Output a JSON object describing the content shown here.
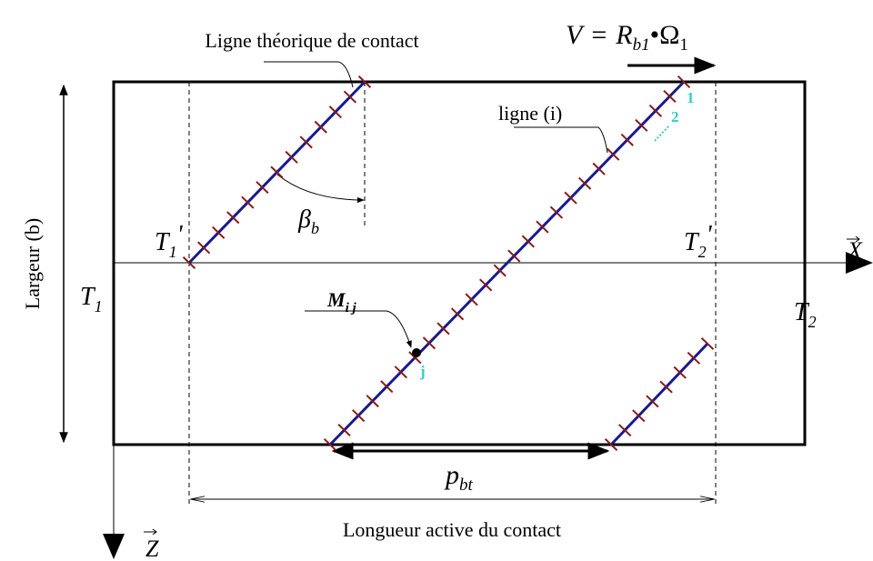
{
  "labels": {
    "line_title": "Ligne théorique de contact",
    "velocity": {
      "v": "V",
      "eq": "=",
      "r": "R",
      "r_sub": "b1",
      "dot": "•",
      "omega": "Ω",
      "omega_sub": "1"
    },
    "line_i": "ligne (i)",
    "point_1": "1",
    "point_2": "2",
    "angle": {
      "base": "β",
      "sub": "b"
    },
    "t1_prime": {
      "base": "T",
      "sub": "1",
      "prime": "'"
    },
    "t2_prime": {
      "base": "T",
      "sub": "2",
      "prime": "'"
    },
    "x_axis": "X",
    "width": "Largeur (b)",
    "t1": {
      "base": "T",
      "sub": "1"
    },
    "t2": {
      "base": "T",
      "sub": "2"
    },
    "point_m": {
      "base": "M",
      "sub": "i j"
    },
    "point_j": "j",
    "pitch": {
      "base": "p",
      "sub": "bt"
    },
    "active_length": "Longueur active du contact",
    "z_axis": "Z"
  }
}
